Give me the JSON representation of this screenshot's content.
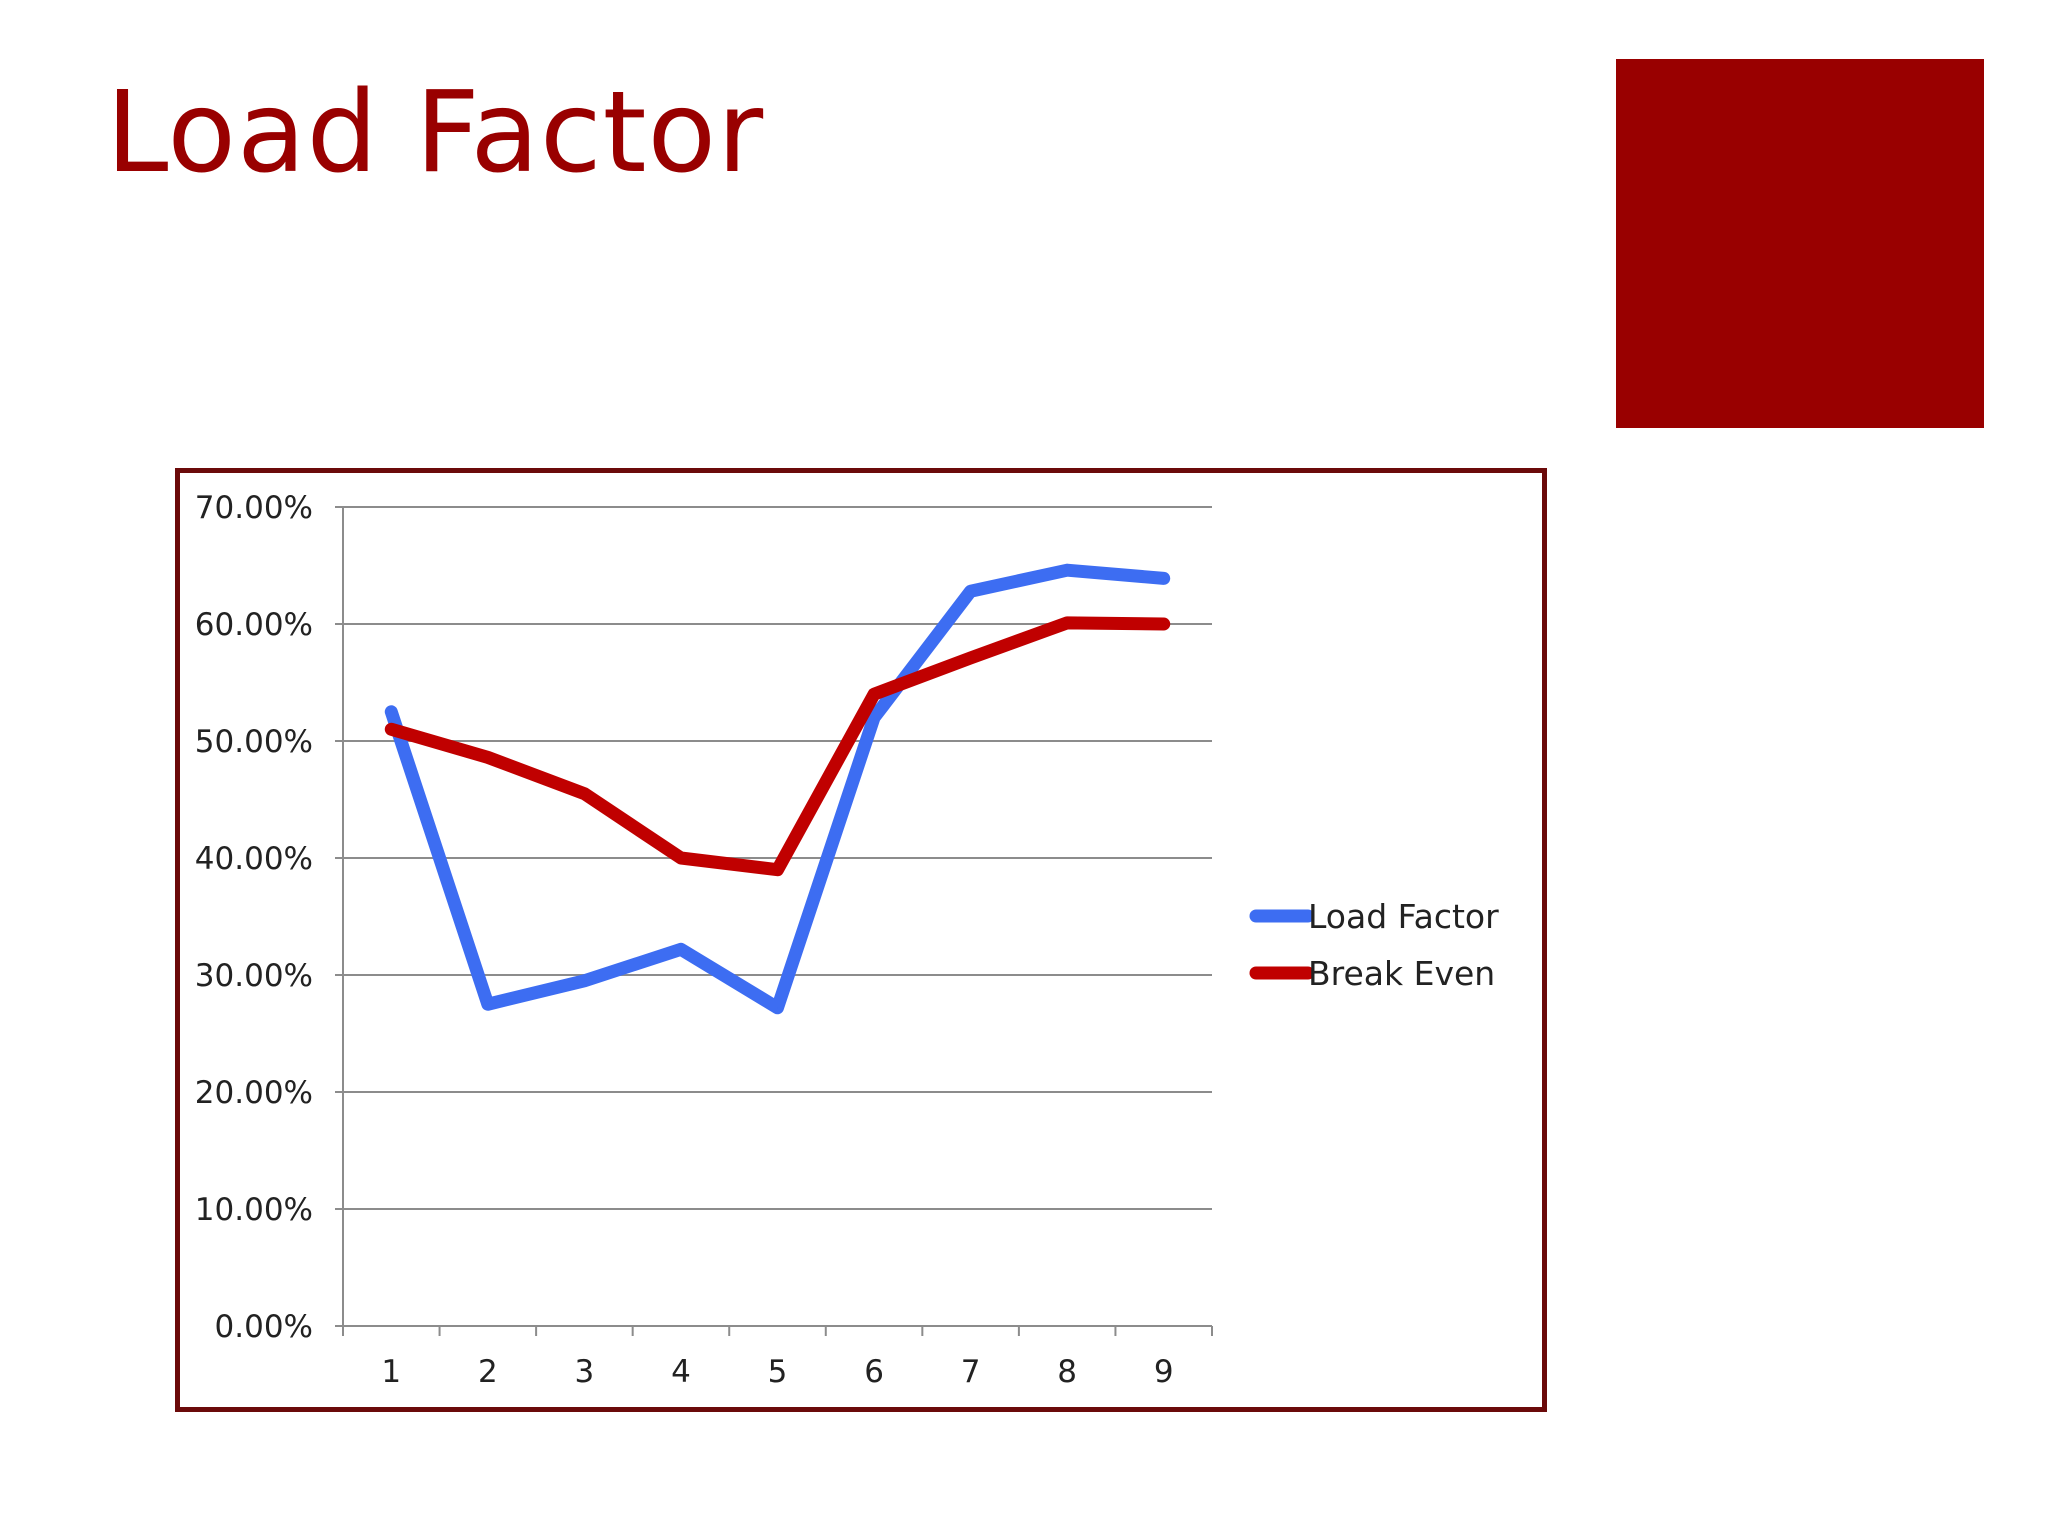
{
  "slide": {
    "title": "Load Factor",
    "accent_color": "#990000",
    "frame_color": "#6b0a0a"
  },
  "chart_data": {
    "type": "line",
    "title": "",
    "xlabel": "",
    "ylabel": "",
    "categories": [
      "1",
      "2",
      "3",
      "4",
      "5",
      "6",
      "7",
      "8",
      "9"
    ],
    "y_ticks": [
      "0.00%",
      "10.00%",
      "20.00%",
      "30.00%",
      "40.00%",
      "50.00%",
      "60.00%",
      "70.00%"
    ],
    "ylim": [
      0,
      70
    ],
    "grid": true,
    "legend_position": "right",
    "series": [
      {
        "name": "Load Factor",
        "color": "#3d6df2",
        "values": [
          52.5,
          27.5,
          29.5,
          32.2,
          27.2,
          52.0,
          62.8,
          64.6,
          63.9
        ]
      },
      {
        "name": "Break Even",
        "color": "#c00000",
        "values": [
          51.0,
          48.6,
          45.5,
          40.0,
          39.0,
          54.0,
          57.1,
          60.1,
          60.0
        ]
      }
    ]
  }
}
